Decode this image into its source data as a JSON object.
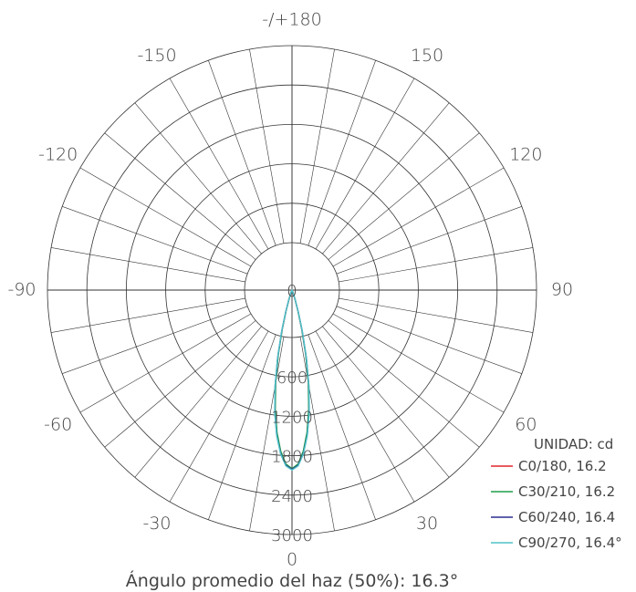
{
  "chart_data": {
    "type": "polar-line",
    "unit_label": "UNIDAD: cd",
    "caption": "Ángulo promedio del haz (50%): 16.3°",
    "angle_labels": [
      {
        "angle": 180,
        "text": "-/+180"
      },
      {
        "angle": -150,
        "text": "-150"
      },
      {
        "angle": 150,
        "text": "150"
      },
      {
        "angle": -120,
        "text": "-120"
      },
      {
        "angle": 120,
        "text": "120"
      },
      {
        "angle": -90,
        "text": "-90"
      },
      {
        "angle": 90,
        "text": "90"
      },
      {
        "angle": -60,
        "text": "-60"
      },
      {
        "angle": 60,
        "text": "60"
      },
      {
        "angle": -30,
        "text": "-30"
      },
      {
        "angle": 30,
        "text": "30"
      },
      {
        "angle": 0,
        "text": "0"
      }
    ],
    "rings": [
      0,
      600,
      1200,
      1800,
      2400,
      3000
    ],
    "ring_labels": [
      "0",
      "600",
      "1200",
      "1800",
      "2400",
      "3000"
    ],
    "r_max": 3000,
    "series": [
      {
        "name": "C0/180, 16.2",
        "color": "#e0262b",
        "angles": [
          0,
          2,
          4,
          6,
          8,
          10,
          12,
          14,
          16,
          18,
          20,
          24,
          28,
          35
        ],
        "values": [
          2720,
          2660,
          2470,
          2200,
          1850,
          1450,
          1020,
          620,
          330,
          150,
          60,
          20,
          8,
          0
        ]
      },
      {
        "name": "C30/210, 16.2",
        "color": "#1f9e4a",
        "angles": [
          0,
          2,
          4,
          6,
          8,
          10,
          12,
          14,
          16,
          18,
          20,
          24,
          28,
          35
        ],
        "values": [
          2720,
          2650,
          2460,
          2180,
          1830,
          1430,
          1000,
          610,
          320,
          145,
          58,
          18,
          7,
          0
        ]
      },
      {
        "name": "C60/240, 16.4",
        "color": "#2b2f8e",
        "angles": [
          0,
          2,
          4,
          6,
          8,
          10,
          12,
          14,
          16,
          18,
          20,
          24,
          28,
          35
        ],
        "values": [
          2730,
          2670,
          2490,
          2220,
          1880,
          1480,
          1050,
          650,
          350,
          160,
          65,
          22,
          9,
          0
        ]
      },
      {
        "name": "C90/270, 16.4°",
        "color": "#4fc3c9",
        "angles": [
          0,
          2,
          4,
          6,
          8,
          10,
          12,
          14,
          16,
          18,
          20,
          24,
          28,
          35
        ],
        "values": [
          2740,
          2680,
          2500,
          2230,
          1890,
          1490,
          1060,
          660,
          355,
          165,
          68,
          23,
          9,
          0
        ]
      }
    ]
  }
}
